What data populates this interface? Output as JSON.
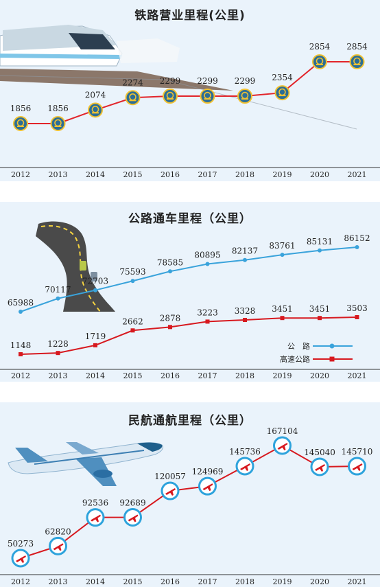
{
  "colors": {
    "panel_bg": "#eaf3fb",
    "rail_line": "#e2242a",
    "rail_marker": "#2c6e95",
    "rail_marker_ring": "#f1c232",
    "highway_line": "#3aa3db",
    "express_line": "#d7191f",
    "air_line": "#d7191f",
    "air_ring": "#2ea3dc",
    "axis": "#333333"
  },
  "chart_data": [
    {
      "type": "line",
      "title": "铁路营业里程(公里)",
      "categories": [
        "2012",
        "2013",
        "2014",
        "2015",
        "2016",
        "2017",
        "2018",
        "2019",
        "2020",
        "2021"
      ],
      "values": [
        1856,
        1856,
        2074,
        2274,
        2299,
        2299,
        2299,
        2354,
        2854,
        2854
      ],
      "marker_icon": "railway-logo-icon",
      "decoration_icon": "train-icon",
      "ylim": [
        1500,
        3000
      ],
      "grid": false
    },
    {
      "type": "line",
      "title": "公路通车里程（公里）",
      "categories": [
        "2012",
        "2013",
        "2014",
        "2015",
        "2016",
        "2017",
        "2018",
        "2019",
        "2020",
        "2021"
      ],
      "series": [
        {
          "name": "公　路",
          "values": [
            65988,
            70117,
            72703,
            75593,
            78585,
            80895,
            82137,
            83761,
            85131,
            86152
          ]
        },
        {
          "name": "高速公路",
          "values": [
            1148,
            1228,
            1719,
            2662,
            2878,
            3223,
            3328,
            3451,
            3451,
            3503
          ]
        }
      ],
      "legend_position": "bottom-right",
      "decoration_icon": "highway-road-icon",
      "grid": false
    },
    {
      "type": "line",
      "title": "民航通航里程（公里）",
      "categories": [
        "2012",
        "2013",
        "2014",
        "2015",
        "2016",
        "2017",
        "2018",
        "2019",
        "2020",
        "2021"
      ],
      "values": [
        50273,
        62820,
        92536,
        92689,
        120057,
        124969,
        145736,
        167104,
        145040,
        145710
      ],
      "marker_icon": "airplane-icon",
      "decoration_icon": "airliner-icon",
      "ylim": [
        40000,
        175000
      ],
      "grid": false
    }
  ]
}
